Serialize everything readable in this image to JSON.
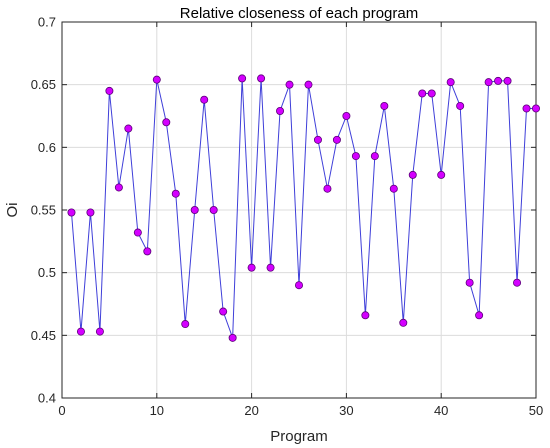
{
  "chart_data": {
    "type": "line",
    "title": "Relative closeness of each program",
    "xlabel": "Program",
    "ylabel": "Oi",
    "xlim": [
      0,
      50
    ],
    "ylim": [
      0.4,
      0.7
    ],
    "xticks": [
      0,
      10,
      20,
      30,
      40,
      50
    ],
    "yticks": [
      0.4,
      0.45,
      0.5,
      0.55,
      0.6,
      0.65,
      0.7
    ],
    "xtick_labels": [
      "0",
      "10",
      "20",
      "30",
      "40",
      "50"
    ],
    "ytick_labels": [
      "0.4",
      "0.45",
      "0.5",
      "0.55",
      "0.6",
      "0.65",
      "0.7"
    ],
    "grid": true,
    "line_color": "#3f3fd9",
    "marker_fill": "#d400ff",
    "marker_edge": "#5a0078",
    "series": [
      {
        "x": [
          1,
          2,
          3,
          4,
          5,
          6,
          7,
          8,
          9,
          10,
          11,
          12,
          13,
          14,
          15,
          16,
          17,
          18,
          19,
          20,
          21,
          22,
          23,
          24,
          25,
          26,
          27,
          28,
          29,
          30,
          31,
          32,
          33,
          34,
          35,
          36,
          37,
          38,
          39,
          40,
          41,
          42,
          43,
          44,
          45,
          46,
          47,
          48,
          49,
          50
        ],
        "values": [
          0.548,
          0.453,
          0.548,
          0.453,
          0.645,
          0.568,
          0.615,
          0.532,
          0.517,
          0.654,
          0.62,
          0.563,
          0.459,
          0.55,
          0.638,
          0.55,
          0.469,
          0.448,
          0.655,
          0.504,
          0.655,
          0.504,
          0.629,
          0.65,
          0.49,
          0.65,
          0.606,
          0.567,
          0.606,
          0.625,
          0.593,
          0.466,
          0.593,
          0.633,
          0.567,
          0.46,
          0.578,
          0.643,
          0.643,
          0.578,
          0.652,
          0.633,
          0.492,
          0.466,
          0.652,
          0.653,
          0.653,
          0.492,
          0.631,
          0.631
        ]
      }
    ]
  }
}
